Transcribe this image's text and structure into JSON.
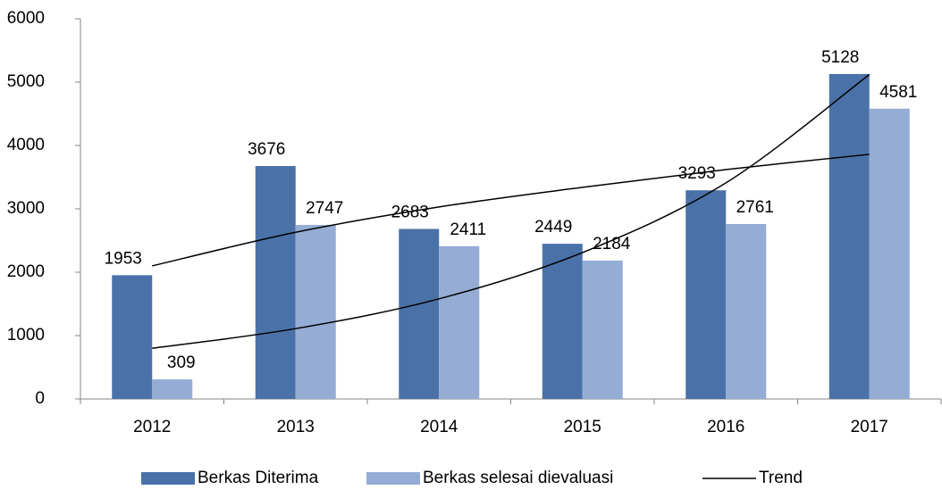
{
  "chart_data": {
    "type": "bar",
    "categories": [
      "2012",
      "2013",
      "2014",
      "2015",
      "2016",
      "2017"
    ],
    "series": [
      {
        "name": "Berkas Diterima",
        "color": "#4a72a8",
        "values": [
          1953,
          3676,
          2683,
          2449,
          3293,
          5128
        ]
      },
      {
        "name": "Berkas selesai dievaluasi",
        "color": "#95acd4",
        "values": [
          309,
          2747,
          2411,
          2184,
          2761,
          4581
        ]
      }
    ],
    "trend": {
      "name": "Trend",
      "color": "#000000",
      "lines": [
        [
          2100,
          2630,
          3030,
          3340,
          3620,
          3860
        ],
        [
          800,
          1110,
          1580,
          2310,
          3410,
          5120
        ]
      ]
    },
    "ylim": [
      0,
      6000
    ],
    "yticks": [
      0,
      1000,
      2000,
      3000,
      4000,
      5000,
      6000
    ],
    "grid": false,
    "legend": "bottom"
  }
}
